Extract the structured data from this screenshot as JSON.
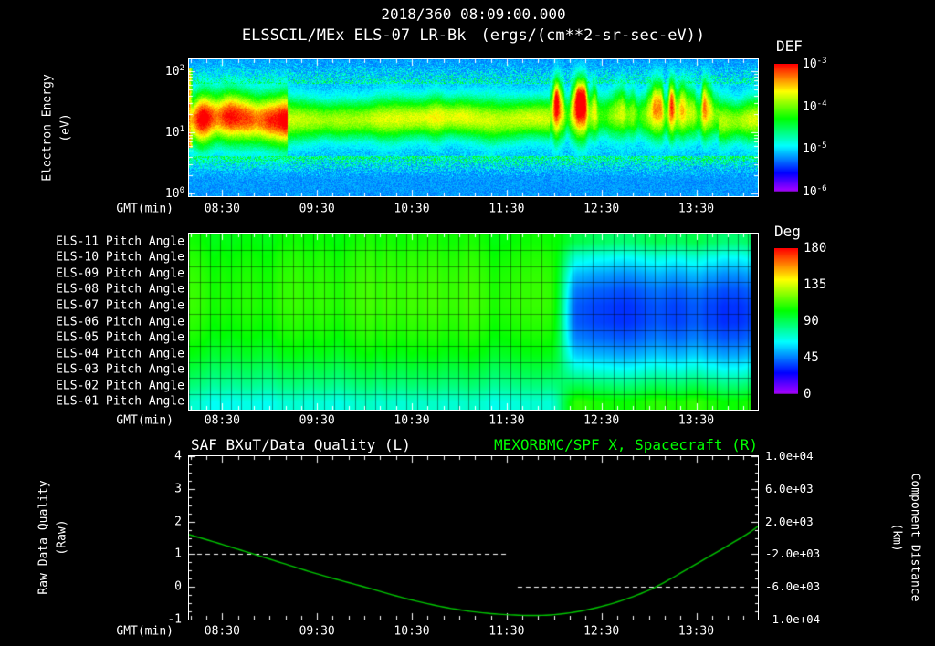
{
  "header": {
    "datetime": "2018/360 08:09:00.000"
  },
  "colors": {
    "background": "#000000",
    "axis_text": "#ffffff",
    "right_title_green": "#00ff00"
  },
  "chart_data": [
    {
      "type": "heatmap",
      "name": "electron_energy_spectrogram",
      "title": "ELSSCIL/MEx ELS-07 LR-Bk",
      "units": "(ergs/(cm**2-sr-sec-eV))",
      "ylabel_lines": [
        "Electron Energy",
        "(eV)"
      ],
      "yscale": "log",
      "y_ticks_exp": [
        2,
        1,
        0
      ],
      "ylim_ev": [
        1,
        150
      ],
      "xlabel": "GMT(min)",
      "time_start": "2018/360 08:09:00.000",
      "duration_min": 360,
      "x_minor_tick_step_min": 10,
      "x_ticks": [
        {
          "min": 21,
          "label": "08:30"
        },
        {
          "min": 81,
          "label": "09:30"
        },
        {
          "min": 141,
          "label": "10:30"
        },
        {
          "min": 201,
          "label": "11:30"
        },
        {
          "min": 261,
          "label": "12:30"
        },
        {
          "min": 321,
          "label": "13:30"
        }
      ],
      "colorbar": {
        "title": "DEF",
        "tick_exps": [
          -3,
          -4,
          -5,
          -6
        ],
        "range_log10": [
          -6,
          -3
        ]
      },
      "features": {
        "background_log10": -5.35,
        "band_center_ev": 17,
        "band_sigma_log10": 0.24,
        "quiet_band_peak_log10": -3.9,
        "intense_until_min": 62,
        "intense_peak_log10": -3.0,
        "striated_from_min": 228,
        "striated_to_min": 335
      }
    },
    {
      "type": "heatmap",
      "name": "pitch_angle_panel",
      "xlabel": "GMT(min)",
      "transition_min": 228,
      "data_end_min": 355,
      "rows": [
        {
          "label": "ELS-11 Pitch Angle",
          "before_deg": 104,
          "after_deg": 88
        },
        {
          "label": "ELS-10 Pitch Angle",
          "before_deg": 107,
          "after_deg": 66
        },
        {
          "label": "ELS-09 Pitch Angle",
          "before_deg": 109,
          "after_deg": 50
        },
        {
          "label": "ELS-08 Pitch Angle",
          "before_deg": 110,
          "after_deg": 40
        },
        {
          "label": "ELS-07 Pitch Angle",
          "before_deg": 110,
          "after_deg": 35
        },
        {
          "label": "ELS-06 Pitch Angle",
          "before_deg": 108,
          "after_deg": 35
        },
        {
          "label": "ELS-05 Pitch Angle",
          "before_deg": 105,
          "after_deg": 41
        },
        {
          "label": "ELS-04 Pitch Angle",
          "before_deg": 100,
          "after_deg": 52
        },
        {
          "label": "ELS-03 Pitch Angle",
          "before_deg": 92,
          "after_deg": 68
        },
        {
          "label": "ELS-02 Pitch Angle",
          "before_deg": 83,
          "after_deg": 88
        },
        {
          "label": "ELS-01 Pitch Angle",
          "before_deg": 70,
          "after_deg": 106
        }
      ],
      "colorbar": {
        "title": "Deg",
        "ticks": [
          180,
          135,
          90,
          45,
          0
        ],
        "range": [
          0,
          180
        ]
      }
    },
    {
      "type": "line",
      "name": "data_quality_and_spacecraft_x",
      "left_title": "SAF_BXuT/Data Quality (L)",
      "right_title": "MEXORBMC/SPF X, Spacecraft (R)",
      "xlabel": "GMT(min)",
      "left_axis": {
        "label_lines": [
          "Raw Data Quality",
          "(Raw)"
        ],
        "ticks": [
          4,
          3,
          2,
          1,
          0,
          -1
        ],
        "range": [
          -1,
          4
        ]
      },
      "right_axis": {
        "label_lines": [
          "Component Distance",
          "(km)"
        ],
        "ticks": [
          10000,
          6000,
          2000,
          -2000,
          -6000,
          -10000
        ],
        "tick_labels": [
          "1.0e+04",
          "6.0e+03",
          "2.0e+03",
          "-2.0e+03",
          "-6.0e+03",
          "-1.0e+04"
        ],
        "range": [
          -10000,
          10000
        ]
      },
      "series": [
        {
          "name": "data_quality",
          "axis": "left",
          "style": "dashed",
          "color": "#ffffff",
          "segments": [
            {
              "start_min": 0,
              "end_min": 201,
              "value": 1
            },
            {
              "start_min": 208,
              "end_min": 353,
              "value": 0
            }
          ]
        },
        {
          "name": "spacecraft_x",
          "axis": "right",
          "style": "solid",
          "color": "#00c800",
          "t_min": [
            0,
            21,
            51,
            81,
            111,
            141,
            171,
            201,
            231,
            261,
            291,
            321,
            351,
            360
          ],
          "km": [
            400,
            -800,
            -2600,
            -4400,
            -6000,
            -7600,
            -8800,
            -9400,
            -9400,
            -8400,
            -6400,
            -3200,
            200,
            1400
          ]
        }
      ]
    }
  ]
}
